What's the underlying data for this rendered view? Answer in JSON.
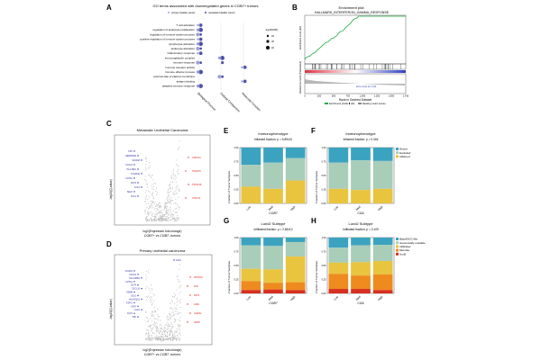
{
  "panels": {
    "A": {
      "label": "A",
      "title": "GO terms associated with downregulated genes in CGB7+ tumors",
      "legend": [
        "primary bladder cancer",
        "metastatic bladder cancer"
      ],
      "size_legend_title": "-log10(FDR)",
      "size_legend_values": [
        "20",
        "30",
        "40"
      ],
      "terms": [
        "T cell activation",
        "regulation of leukocyte proliferation",
        "regulation of immune system process",
        "positive regulation of immune system process",
        "lymphocyte activation",
        "leukocyte activation",
        "inflammatory response",
        "immunoglobulin complex",
        "immune response",
        "immune receptor activity",
        "immune effector process",
        "external side of plasma membrane",
        "antigen binding",
        "adaptive immune response"
      ],
      "categories": [
        "Biological Process",
        "Cellular Component",
        "Molecular Function"
      ]
    },
    "B": {
      "label": "B",
      "title_line1": "Enrichment plot:",
      "title_line2": "HALLMARK_INTERFERON_GAMMA_RESPONSE",
      "ylabel_top": "Enrichment score (ES)",
      "ylabel_bottom": "Ranked list metric (PreRanked)",
      "xlabel": "Rank in Ordered Dataset",
      "xticks": [
        "0",
        "250",
        "500",
        "750",
        "1,000",
        "1,250",
        "1,500",
        "1,750"
      ],
      "zero_cross_label": "Zero cross at 1,014",
      "legend": [
        "Enrichment profile",
        "Hits",
        "Ranking metric scores"
      ]
    },
    "C": {
      "label": "C",
      "title": "Metastatic Urothelial Carcinoma",
      "ylabel": "-log10(Q-value)",
      "xlabel": "log2(Expression fold-change)",
      "subtitle": "CGB7+ vs CGB7- tumors",
      "left_genes": [
        "KRT",
        "SERPINB3",
        "S100A8",
        "CXCL9",
        "HLA-DRA",
        "FCGR3A",
        "IGHG1",
        "CD74",
        "CCL5",
        "SELP",
        "CCL2"
      ],
      "right_genes": [
        "CDKN1A",
        "TNFAIP3",
        "TNFSF18",
        "NT5C3A"
      ]
    },
    "D": {
      "label": "D",
      "title": "Primary urothelial carcinoma",
      "ylabel": "-log10(Q-value)",
      "xlabel": "log2(Expression fold-change)",
      "subtitle": "CGB7+ vs CGB7- tumors",
      "top_gene": "JAK3",
      "left_genes": [
        "VCAM1",
        "CXCL9",
        "HLA-DRB1",
        "IGHG1",
        "CD74",
        "CXCL10",
        "GZMB",
        "IDO1",
        "HLA-DQA1",
        "STAT1",
        "CIITA",
        "LAG3",
        "CCL5",
        "TNF"
      ],
      "right_genes": [
        "MTHFD2",
        "SFN",
        "KRT6",
        "GJB2",
        "S100A2",
        "SPRR"
      ]
    },
    "E": {
      "label": "E",
      "title": "Immunophenotype",
      "stat_label": "Inflamed fraction: p",
      "stat_value": "= 6.89x10",
      "ylabel": "Fraction of Tumor Samples",
      "xlabel": "CGB7",
      "yticks": [
        "0.00",
        "0.25",
        "0.50",
        "0.75",
        "1.00"
      ]
    },
    "F": {
      "label": "F",
      "title": "Immunophenotype",
      "stat_label": "Inflamed fraction: p",
      "stat_value": "= 0.346",
      "ylabel": "Fraction of Tumor Samples",
      "xlabel": "CGA",
      "yticks": [
        "0.00",
        "0.25",
        "0.50",
        "0.75",
        "1.00"
      ],
      "legend": [
        "Desert",
        "Excluded",
        "Inflamed"
      ]
    },
    "G": {
      "label": "G",
      "title": "Lund2 Subtype",
      "stat_label": "Infiltrated fraction: p",
      "stat_value": "= 2.65x10",
      "ylabel": "Fraction of Tumor Samples",
      "xlabel": "CGB7",
      "yticks": [
        "0.00",
        "0.25",
        "0.50",
        "0.75",
        "1.00"
      ]
    },
    "H": {
      "label": "H",
      "title": "Lund2 Subtype",
      "stat_label": "Infiltrated fraction: p",
      "stat_value": "= 0.109",
      "ylabel": "Fraction of Tumor Samples",
      "xlabel": "CGA",
      "yticks": [
        "0.00",
        "0.25",
        "0.50",
        "0.75",
        "1.00"
      ],
      "legend": [
        "Basal/SCC-like",
        "Genomically unstable",
        "Infiltrated",
        "Mes-like",
        "UroB"
      ]
    }
  },
  "colors": {
    "desert": "#3ba3c0",
    "excluded": "#a8cdb8",
    "inflamed": "#e9c43f",
    "basal": "#3ba3c0",
    "gu": "#a8cdb8",
    "infiltrated": "#e9c43f",
    "mes": "#ef8a1f",
    "urob": "#d7301f",
    "primary_dot": "#9aa0d8",
    "metastatic_dot": "#4b4fa8",
    "up_gene": "#e0281e",
    "down_gene": "#2a2fa0"
  },
  "chart_data": [
    {
      "type": "bar",
      "panel": "E",
      "stacked": true,
      "categories": [
        "Low",
        "Med",
        "High"
      ],
      "series": [
        {
          "name": "Desert",
          "values": [
            0.31,
            0.27,
            0.19
          ]
        },
        {
          "name": "Excluded",
          "values": [
            0.39,
            0.47,
            0.4
          ]
        },
        {
          "name": "Inflamed",
          "values": [
            0.3,
            0.26,
            0.41
          ]
        }
      ],
      "ylim": [
        0,
        1
      ]
    },
    {
      "type": "bar",
      "panel": "F",
      "stacked": true,
      "categories": [
        "Low",
        "Med",
        "High"
      ],
      "series": [
        {
          "name": "Desert",
          "values": [
            0.27,
            0.23,
            0.24
          ]
        },
        {
          "name": "Excluded",
          "values": [
            0.47,
            0.53,
            0.5
          ]
        },
        {
          "name": "Inflamed",
          "values": [
            0.26,
            0.24,
            0.26
          ]
        }
      ],
      "ylim": [
        0,
        1
      ]
    },
    {
      "type": "bar",
      "panel": "G",
      "stacked": true,
      "categories": [
        "Low",
        "Med",
        "High"
      ],
      "series": [
        {
          "name": "Basal/SCC-like",
          "values": [
            0.14,
            0.15,
            0.08
          ]
        },
        {
          "name": "Genomically unstable",
          "values": [
            0.42,
            0.42,
            0.26
          ]
        },
        {
          "name": "Infiltrated",
          "values": [
            0.22,
            0.24,
            0.46
          ]
        },
        {
          "name": "Mes-like",
          "values": [
            0.16,
            0.12,
            0.14
          ]
        },
        {
          "name": "UroB",
          "values": [
            0.06,
            0.07,
            0.06
          ]
        }
      ],
      "ylim": [
        0,
        1
      ]
    },
    {
      "type": "bar",
      "panel": "H",
      "stacked": true,
      "categories": [
        "Low",
        "Med",
        "High"
      ],
      "series": [
        {
          "name": "Basal/SCC-like",
          "values": [
            0.18,
            0.14,
            0.13
          ]
        },
        {
          "name": "Genomically unstable",
          "values": [
            0.27,
            0.3,
            0.29
          ]
        },
        {
          "name": "Infiltrated",
          "values": [
            0.2,
            0.24,
            0.24
          ]
        },
        {
          "name": "Mes-like",
          "values": [
            0.27,
            0.24,
            0.28
          ]
        },
        {
          "name": "UroB",
          "values": [
            0.08,
            0.08,
            0.06
          ]
        }
      ],
      "ylim": [
        0,
        1
      ]
    }
  ]
}
